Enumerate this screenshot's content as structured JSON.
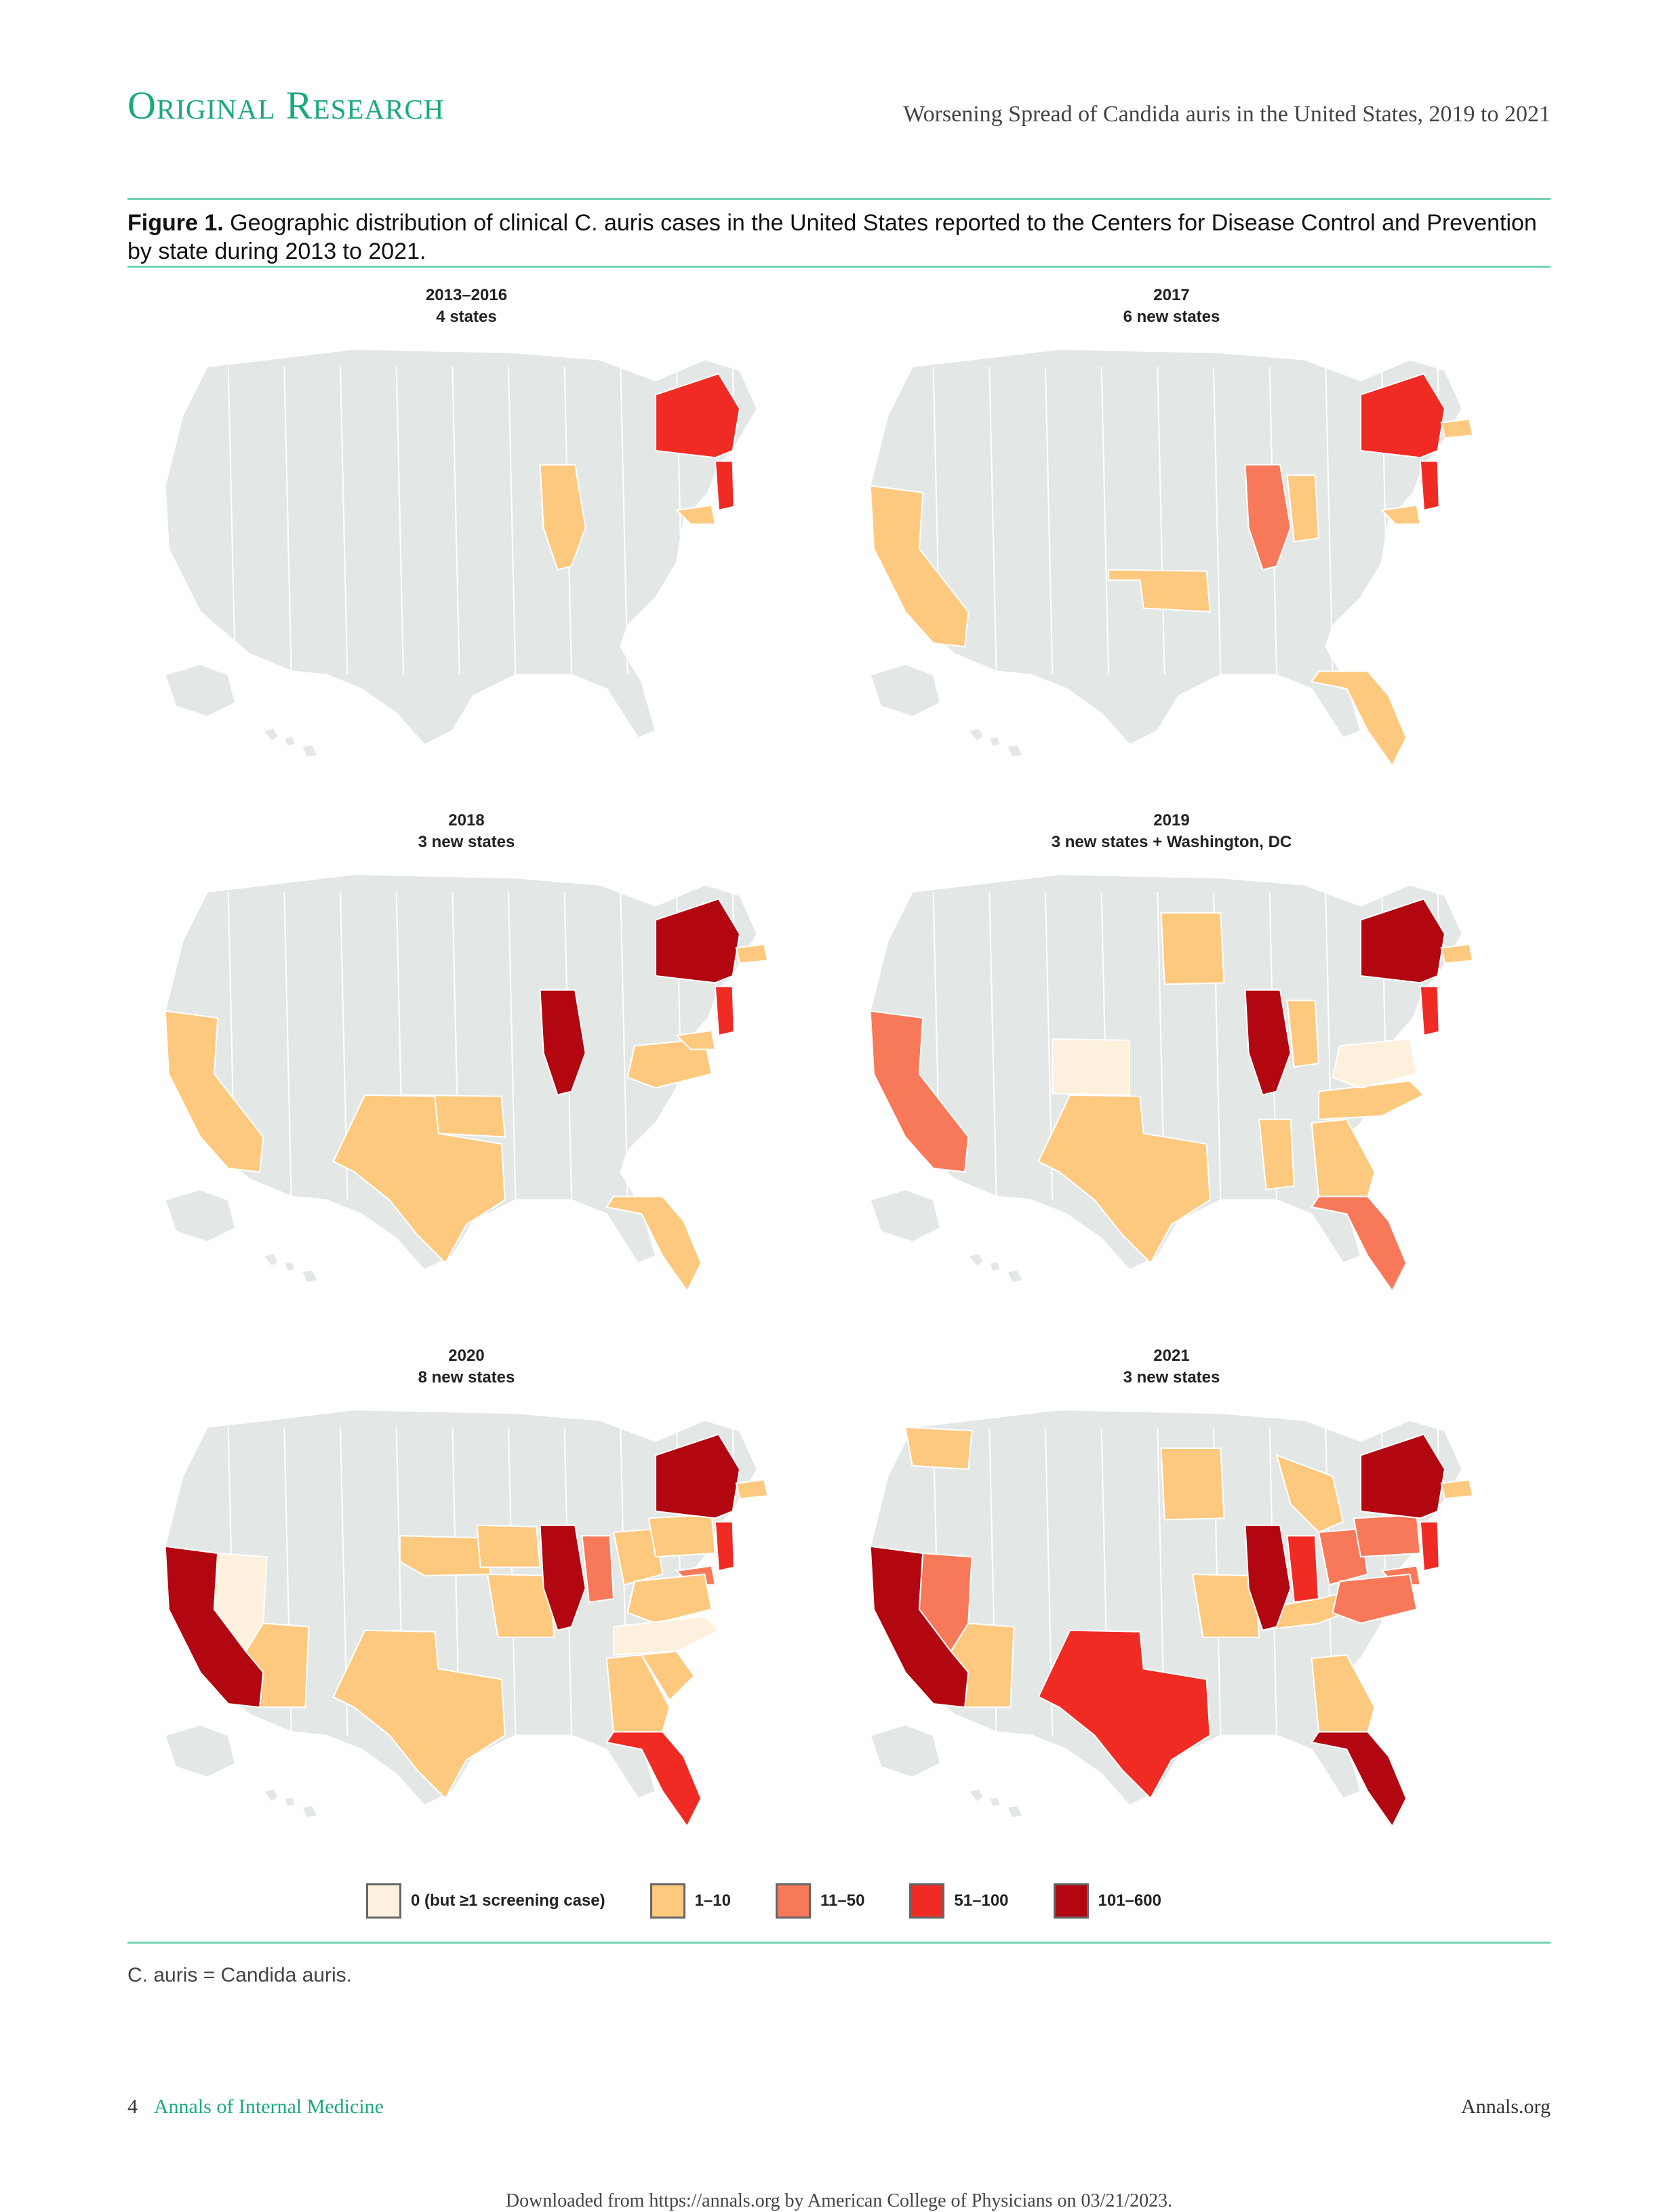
{
  "header": {
    "section": "Original Research",
    "running_title": "Worsening Spread of Candida auris in the United States, 2019 to 2021"
  },
  "figure": {
    "caption_label": "Figure 1.",
    "caption_text": "Geographic distribution of clinical C. auris cases in the United States reported to the Centers for Disease Control and Prevention by state during 2013 to 2021.",
    "panels": [
      {
        "year": "2013–2016",
        "subtitle": "4 states"
      },
      {
        "year": "2017",
        "subtitle": "6 new states"
      },
      {
        "year": "2018",
        "subtitle": "3 new states"
      },
      {
        "year": "2019",
        "subtitle": "3 new states + Washington, DC"
      },
      {
        "year": "2020",
        "subtitle": "8 new states"
      },
      {
        "year": "2021",
        "subtitle": "3 new states"
      }
    ],
    "legend": [
      {
        "label": "0 (but ≥1 screening case)",
        "color": "#fdf0dc"
      },
      {
        "label": "1–10",
        "color": "#fdc97f"
      },
      {
        "label": "11–50",
        "color": "#f7795a"
      },
      {
        "label": "51–100",
        "color": "#ef2b24"
      },
      {
        "label": "101–600",
        "color": "#b20710"
      }
    ],
    "note": "C. auris = Candida auris."
  },
  "colors": {
    "base": "#e3e7e6",
    "border": "#ffffff",
    "accent": "#19a97e"
  },
  "footer": {
    "page": "4",
    "journal": "Annals of Internal Medicine",
    "site": "Annals.org",
    "download_note": "Downloaded from https://annals.org by American College of Physicians on 03/21/2023."
  }
}
